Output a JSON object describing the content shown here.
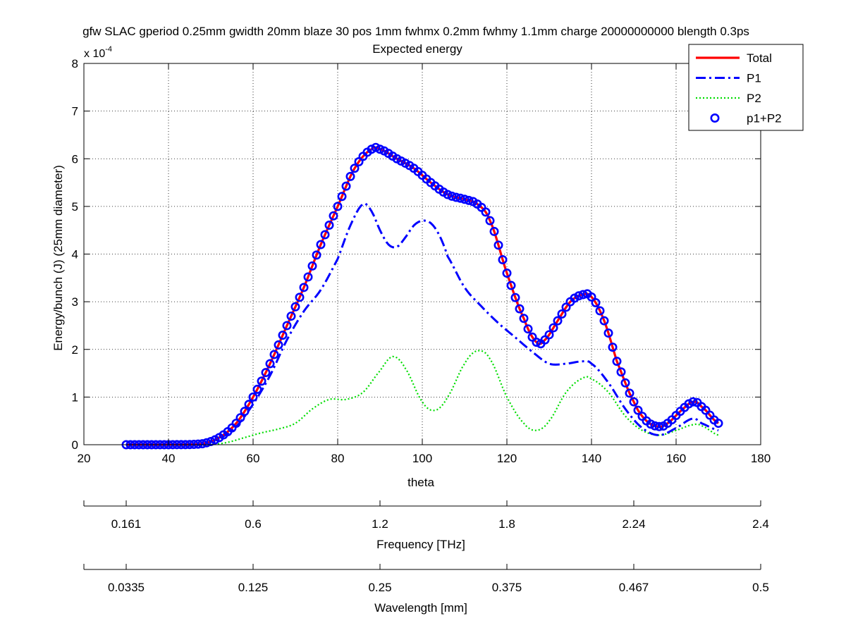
{
  "chart_data": {
    "type": "line",
    "title": "gfw SLAC gperiod 0.25mm gwidth 20mm blaze 30 pos 1mm fwhmx 0.2mm fwhmy 1.1mm charge 20000000000 blength 0.3ps",
    "subtitle": "Expected energy",
    "xlabel": "theta",
    "ylabel": "Energy/bunch (J) (25mm diameter)",
    "y_exponent_label": "x 10",
    "y_exponent_power": "-4",
    "xlim": [
      20,
      180
    ],
    "ylim": [
      0,
      8
    ],
    "grid": true,
    "legend_position": "top-right",
    "x_ticks": [
      "20",
      "40",
      "60",
      "80",
      "100",
      "120",
      "140",
      "160",
      "180"
    ],
    "y_ticks": [
      "0",
      "1",
      "2",
      "3",
      "4",
      "5",
      "6",
      "7",
      "8"
    ],
    "secondary_axes": [
      {
        "label": "Frequency [THz]",
        "tick_theta": [
          20,
          30,
          60,
          90,
          120,
          150,
          180
        ],
        "tick_labels": [
          "",
          "0.161",
          "0.6",
          "1.2",
          "1.8",
          "2.24",
          "2.4"
        ]
      },
      {
        "label": "Wavelength [mm]",
        "tick_theta": [
          20,
          30,
          60,
          90,
          120,
          150,
          180
        ],
        "tick_labels": [
          "",
          "0.0335",
          "0.125",
          "0.25",
          "0.375",
          "0.467",
          "0.5"
        ]
      }
    ],
    "legend": [
      {
        "label": "Total",
        "color": "#ff0000",
        "style": "solid"
      },
      {
        "label": "P1",
        "color": "#0000ff",
        "style": "dashdot"
      },
      {
        "label": "P2",
        "color": "#00dd00",
        "style": "dotted"
      },
      {
        "label": "p1+P2",
        "color": "#0000ff",
        "style": "circle"
      }
    ],
    "series": [
      {
        "name": "Total",
        "color": "#ff0000",
        "x": [
          30,
          40,
          48,
          52,
          56,
          60,
          64,
          68,
          72,
          76,
          80,
          84,
          88,
          90,
          94,
          98,
          102,
          106,
          110,
          113,
          116,
          120,
          124,
          127,
          129,
          132,
          135,
          138,
          140,
          143,
          146,
          150,
          153,
          156,
          158,
          161,
          164,
          166,
          170
        ],
        "y": [
          0,
          0,
          0.02,
          0.15,
          0.45,
          1.0,
          1.7,
          2.5,
          3.3,
          4.2,
          5.0,
          5.8,
          6.2,
          6.2,
          6.0,
          5.8,
          5.5,
          5.25,
          5.15,
          5.05,
          4.7,
          3.6,
          2.65,
          2.15,
          2.2,
          2.6,
          3.0,
          3.15,
          3.1,
          2.6,
          1.75,
          0.9,
          0.5,
          0.38,
          0.45,
          0.7,
          0.9,
          0.8,
          0.45
        ]
      },
      {
        "name": "P1",
        "color": "#0000ff",
        "x": [
          30,
          40,
          48,
          52,
          56,
          60,
          64,
          68,
          72,
          76,
          80,
          83,
          86,
          88,
          90,
          92,
          94,
          96,
          98,
          100,
          102,
          104,
          106,
          110,
          114,
          118,
          122,
          126,
          130,
          134,
          138,
          140,
          144,
          148,
          152,
          156,
          160,
          164,
          166,
          170
        ],
        "y": [
          0,
          0,
          0.02,
          0.13,
          0.38,
          0.85,
          1.45,
          2.2,
          2.8,
          3.25,
          3.9,
          4.6,
          5.05,
          4.9,
          4.5,
          4.2,
          4.15,
          4.35,
          4.6,
          4.7,
          4.65,
          4.4,
          3.95,
          3.3,
          2.9,
          2.55,
          2.25,
          1.95,
          1.7,
          1.7,
          1.75,
          1.7,
          1.3,
          0.75,
          0.35,
          0.2,
          0.35,
          0.55,
          0.45,
          0.3
        ]
      },
      {
        "name": "P2",
        "color": "#00dd00",
        "x": [
          30,
          50,
          54,
          58,
          62,
          66,
          70,
          74,
          78,
          82,
          86,
          90,
          93,
          96,
          100,
          103,
          106,
          110,
          113,
          116,
          120,
          124,
          127,
          130,
          134,
          138,
          140,
          144,
          148,
          152,
          156,
          160,
          164,
          166,
          170
        ],
        "y": [
          0,
          0,
          0.05,
          0.15,
          0.25,
          0.33,
          0.45,
          0.75,
          0.95,
          0.95,
          1.1,
          1.55,
          1.85,
          1.6,
          0.9,
          0.72,
          1.0,
          1.7,
          1.97,
          1.8,
          1.0,
          0.45,
          0.3,
          0.5,
          1.1,
          1.4,
          1.38,
          1.1,
          0.6,
          0.3,
          0.2,
          0.3,
          0.42,
          0.4,
          0.2
        ]
      },
      {
        "name": "p1+P2",
        "color": "#0000ff",
        "x": [
          30,
          40,
          48,
          52,
          56,
          60,
          64,
          68,
          72,
          76,
          80,
          84,
          88,
          90,
          94,
          98,
          102,
          106,
          110,
          113,
          116,
          120,
          124,
          127,
          129,
          132,
          135,
          138,
          140,
          143,
          146,
          150,
          153,
          156,
          158,
          161,
          164,
          166,
          170
        ],
        "y": [
          0,
          0,
          0.02,
          0.15,
          0.45,
          1.0,
          1.7,
          2.5,
          3.3,
          4.2,
          5.0,
          5.8,
          6.2,
          6.2,
          6.0,
          5.8,
          5.5,
          5.25,
          5.15,
          5.05,
          4.7,
          3.6,
          2.65,
          2.15,
          2.2,
          2.6,
          3.0,
          3.15,
          3.1,
          2.6,
          1.75,
          0.9,
          0.5,
          0.38,
          0.45,
          0.7,
          0.9,
          0.8,
          0.45
        ]
      }
    ]
  }
}
